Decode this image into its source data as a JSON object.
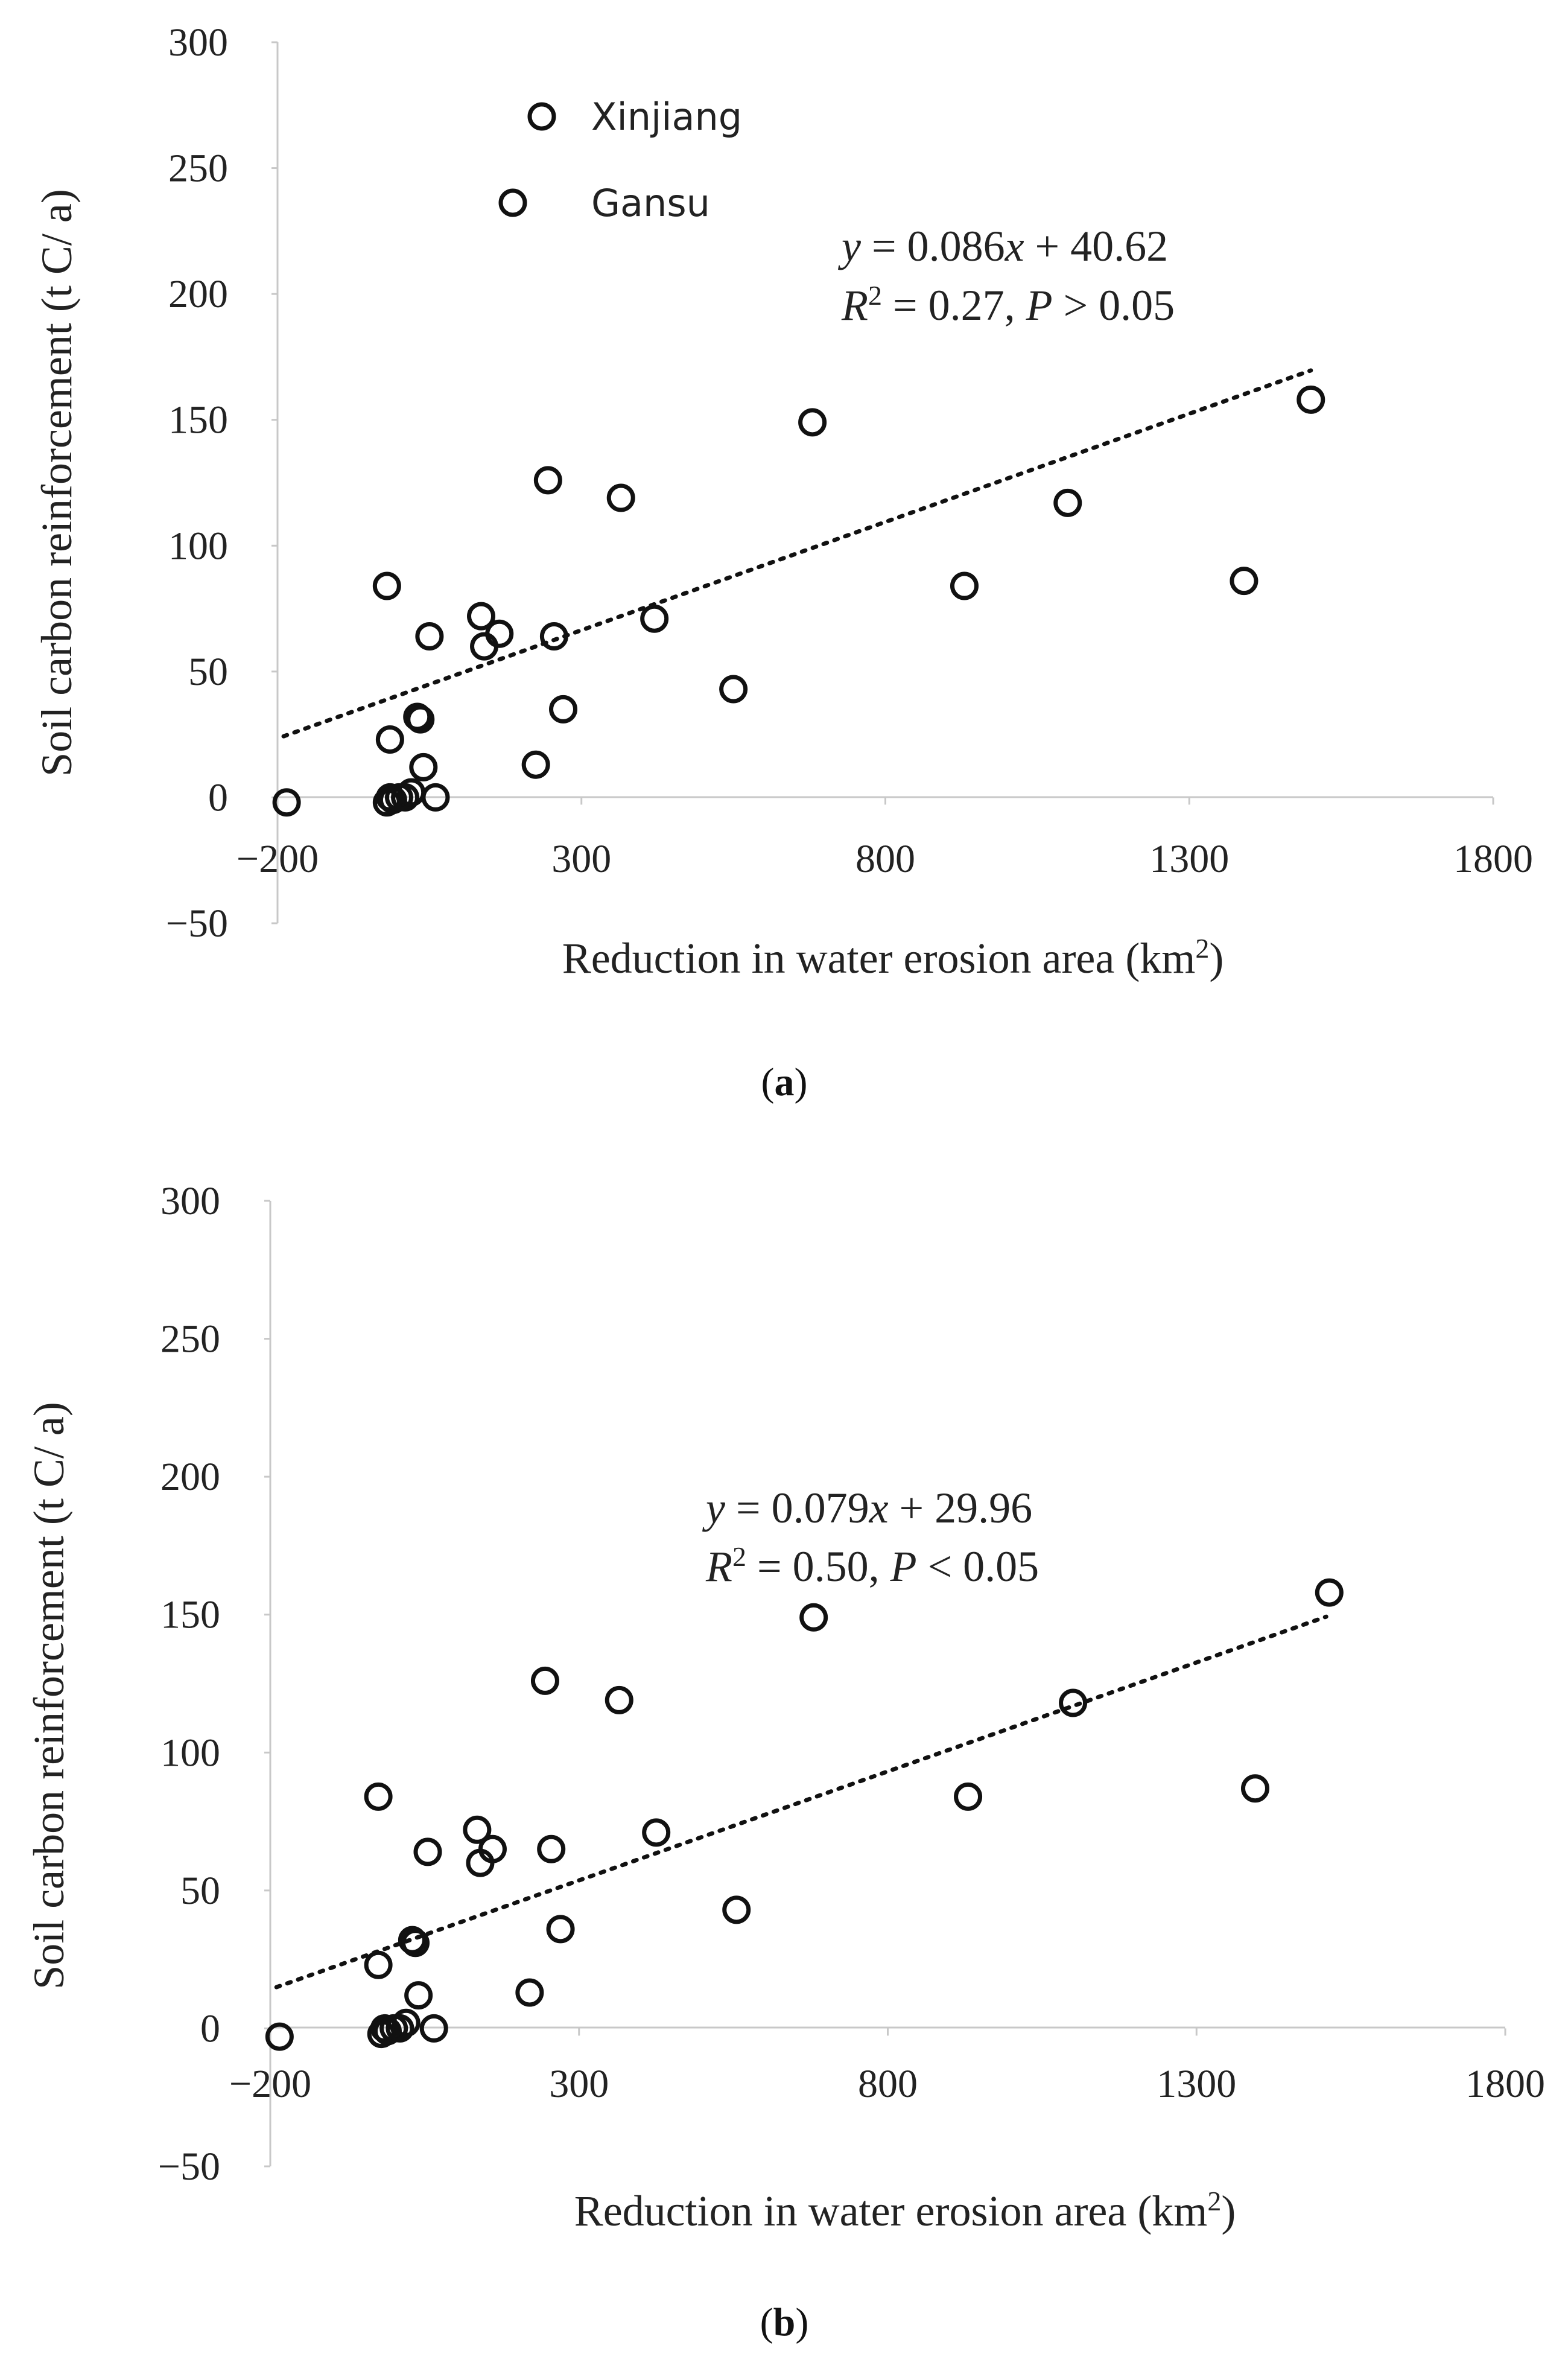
{
  "chart_data": [
    {
      "type": "scatter",
      "panel_label": "a",
      "xlabel": "Reduction in water erosion area (km",
      "xlabel_sup": "2",
      "xlabel_close": ")",
      "ylabel": "Soil carbon reinforcement (t C/ a)",
      "xlim": [
        -200,
        1800
      ],
      "ylim": [
        -50,
        300
      ],
      "xticks": [
        "−200",
        "300",
        "800",
        "1300",
        "1800"
      ],
      "yticks": [
        "300",
        "250",
        "200",
        "150",
        "100",
        "50",
        "0",
        "−50"
      ],
      "xtick_values": [
        -200,
        300,
        800,
        1300,
        1800
      ],
      "ytick_values": [
        300,
        250,
        200,
        150,
        100,
        50,
        0,
        -50
      ],
      "legend": [
        "Xinjiang",
        "Gansu"
      ],
      "equation": {
        "y": "y",
        "x": "x",
        "line1_rest": " = 0.086",
        "line1_tail": " + 40.62",
        "r": "R",
        "r_sup": "2",
        "line2_rest": " = 0.27, ",
        "p": "P",
        "p_rest": " > 0.05"
      },
      "trend": {
        "slope": 0.086,
        "intercept": 40.62,
        "x_range": [
          -190,
          1500
        ]
      },
      "points": [
        [
          -185,
          -2
        ],
        [
          -20,
          -2
        ],
        [
          -15,
          0
        ],
        [
          -10,
          -1
        ],
        [
          0,
          0
        ],
        [
          10,
          0
        ],
        [
          20,
          2
        ],
        [
          30,
          32
        ],
        [
          35,
          31
        ],
        [
          40,
          12
        ],
        [
          60,
          0
        ],
        [
          50,
          64
        ],
        [
          -20,
          84
        ],
        [
          -15,
          23
        ],
        [
          135,
          72
        ],
        [
          140,
          60
        ],
        [
          165,
          65
        ],
        [
          225,
          13
        ],
        [
          245,
          126
        ],
        [
          255,
          64
        ],
        [
          270,
          35
        ],
        [
          365,
          119
        ],
        [
          420,
          71
        ],
        [
          550,
          43
        ],
        [
          680,
          149
        ],
        [
          930,
          84
        ],
        [
          1100,
          117
        ],
        [
          1390,
          86
        ],
        [
          1500,
          158
        ]
      ]
    },
    {
      "type": "scatter",
      "panel_label": "b",
      "xlabel": "Reduction in water erosion area (km",
      "xlabel_sup": "2",
      "xlabel_close": ")",
      "ylabel": "Soil carbon reinforcement (t C/ a)",
      "xlim": [
        -200,
        1800
      ],
      "ylim": [
        -50,
        300
      ],
      "xticks": [
        "−200",
        "300",
        "800",
        "1300",
        "1800"
      ],
      "yticks": [
        "300",
        "250",
        "200",
        "150",
        "100",
        "50",
        "0",
        "−50"
      ],
      "xtick_values": [
        -200,
        300,
        800,
        1300,
        1800
      ],
      "ytick_values": [
        300,
        250,
        200,
        150,
        100,
        50,
        0,
        -50
      ],
      "equation": {
        "y": "y",
        "x": "x",
        "line1_rest": " = 0.079",
        "line1_tail": " + 29.96",
        "r": "R",
        "r_sup": "2",
        "line2_rest": " = 0.50, ",
        "p": "P",
        "p_rest": " < 0.05"
      },
      "trend": {
        "slope": 0.079,
        "intercept": 29.96,
        "x_range": [
          -190,
          1510
        ]
      },
      "points": [
        [
          -185,
          -3
        ],
        [
          -20,
          -2
        ],
        [
          -15,
          0
        ],
        [
          -10,
          -1
        ],
        [
          0,
          0
        ],
        [
          10,
          0
        ],
        [
          20,
          2
        ],
        [
          30,
          32
        ],
        [
          35,
          31
        ],
        [
          40,
          12
        ],
        [
          65,
          0
        ],
        [
          55,
          64
        ],
        [
          -25,
          84
        ],
        [
          -25,
          23
        ],
        [
          135,
          72
        ],
        [
          140,
          60
        ],
        [
          160,
          65
        ],
        [
          220,
          13
        ],
        [
          245,
          126
        ],
        [
          255,
          65
        ],
        [
          270,
          36
        ],
        [
          365,
          119
        ],
        [
          425,
          71
        ],
        [
          555,
          43
        ],
        [
          680,
          149
        ],
        [
          930,
          84
        ],
        [
          1100,
          118
        ],
        [
          1395,
          87
        ],
        [
          1515,
          158
        ]
      ]
    }
  ]
}
